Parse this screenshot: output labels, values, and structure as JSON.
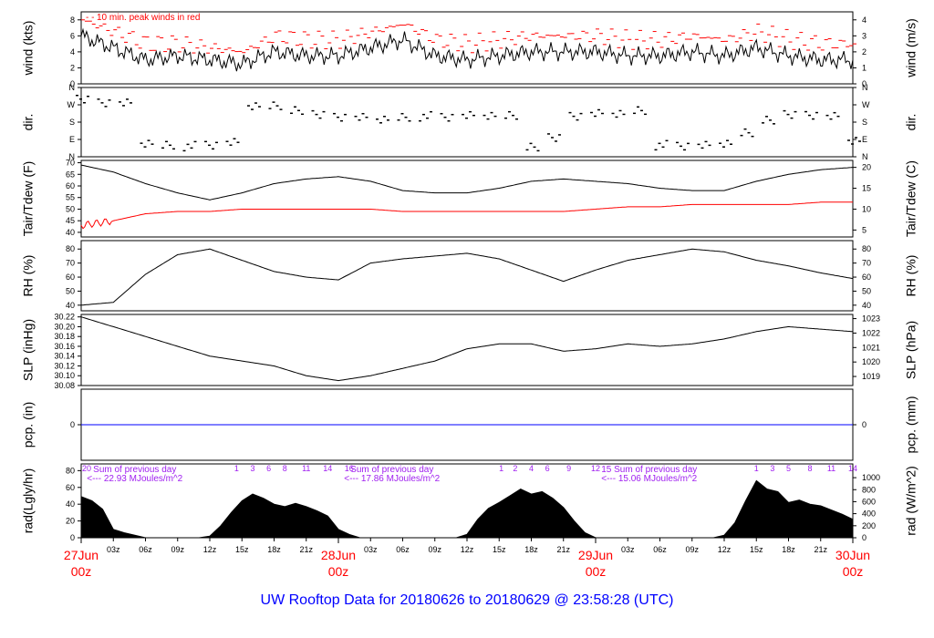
{
  "title": "UW Rooftop Data for 20180626  to  20180629 @ 23:58:28  (UTC)",
  "colors": {
    "black": "#000000",
    "red": "#ff0000",
    "blue": "#0000ff",
    "purple": "#a020f0"
  },
  "chart_data": [
    {
      "type": "line",
      "id": "wind",
      "ylabel_left": "wind (kts)",
      "ylabel_right": "wind (m/s)",
      "ylim": [
        0,
        9
      ],
      "ticks_left": [
        "0",
        "2",
        "4",
        "6",
        "8"
      ],
      "ticks_right": [
        "0",
        "1",
        "2",
        "3",
        "4"
      ],
      "annotation": "10 min. peak winds in red",
      "series": [
        {
          "color": "#000000",
          "x": [
            0,
            3,
            6,
            9,
            12,
            15,
            18,
            21,
            24,
            27,
            30,
            33,
            36,
            39,
            42,
            45,
            48,
            51,
            54,
            57,
            60,
            63,
            66,
            69,
            72
          ],
          "values": [
            6,
            4.5,
            3,
            3.5,
            3,
            2.5,
            4,
            3.5,
            3.5,
            4.5,
            5.5,
            3.5,
            3,
            3.5,
            4,
            4,
            4,
            3.5,
            3.5,
            4,
            3.5,
            4.5,
            3.5,
            3,
            3
          ]
        },
        {
          "color": "#ff0000",
          "x": [
            0,
            3,
            6,
            9,
            12,
            15,
            18,
            21,
            24,
            27,
            30,
            33,
            36,
            39,
            42,
            45,
            48,
            51,
            54,
            57,
            60,
            63,
            66,
            69,
            72
          ],
          "values": [
            8,
            6.5,
            5,
            5,
            4.5,
            4,
            6,
            5.5,
            5.5,
            6.5,
            7.5,
            5.5,
            5,
            5.5,
            6,
            6,
            6,
            5.5,
            5.5,
            6,
            5.5,
            6.5,
            5.5,
            5,
            5
          ]
        }
      ]
    },
    {
      "type": "scatter",
      "id": "dir",
      "ylabel_left": "dir.",
      "ylabel_right": "dir.",
      "ylim": [
        0,
        360
      ],
      "ticks_left": [
        "N",
        "E",
        "S",
        "W",
        "N"
      ],
      "ticks_right": [
        "N",
        "E",
        "S",
        "W",
        "N"
      ],
      "series": [
        {
          "color": "#000000",
          "x": [
            0,
            2,
            4,
            6,
            8,
            10,
            12,
            14,
            16,
            18,
            20,
            22,
            24,
            26,
            28,
            30,
            32,
            34,
            36,
            38,
            40,
            42,
            44,
            46,
            48,
            50,
            52,
            54,
            56,
            58,
            60,
            62,
            64,
            66,
            68,
            70,
            72
          ],
          "values": [
            295,
            285,
            280,
            75,
            60,
            55,
            60,
            70,
            265,
            260,
            245,
            215,
            210,
            205,
            200,
            205,
            210,
            205,
            210,
            215,
            210,
            55,
            95,
            215,
            225,
            230,
            240,
            60,
            55,
            55,
            70,
            120,
            195,
            215,
            220,
            210,
            90
          ]
        }
      ]
    },
    {
      "type": "line",
      "id": "temp",
      "ylabel_left": "Tair/Tdew (F)",
      "ylabel_right": "Tair/Tdew (C)",
      "ylim": [
        38,
        71
      ],
      "ticks_left": [
        "40",
        "45",
        "50",
        "55",
        "60",
        "65",
        "70"
      ],
      "ticks_right": [
        "5",
        "10",
        "15",
        "20"
      ],
      "series": [
        {
          "color": "#000000",
          "x": [
            0,
            3,
            6,
            9,
            12,
            15,
            18,
            21,
            24,
            27,
            30,
            33,
            36,
            39,
            42,
            45,
            48,
            51,
            54,
            57,
            60,
            63,
            66,
            69,
            72
          ],
          "values": [
            69,
            66,
            61,
            57,
            54,
            57,
            61,
            63,
            64,
            62,
            58,
            57,
            57,
            59,
            62,
            63,
            62,
            61,
            59,
            58,
            58,
            62,
            65,
            67,
            68
          ]
        },
        {
          "color": "#ff0000",
          "x": [
            0,
            3,
            6,
            9,
            12,
            15,
            18,
            21,
            24,
            27,
            30,
            33,
            36,
            39,
            42,
            45,
            48,
            51,
            54,
            57,
            60,
            63,
            66,
            69,
            72
          ],
          "values": [
            43,
            45,
            48,
            49,
            49,
            50,
            50,
            50,
            50,
            50,
            49,
            49,
            49,
            49,
            49,
            49,
            50,
            51,
            51,
            52,
            52,
            52,
            52,
            53,
            53
          ]
        }
      ]
    },
    {
      "type": "line",
      "id": "rh",
      "ylabel_left": "RH (%)",
      "ylabel_right": "RH (%)",
      "ylim": [
        36,
        86
      ],
      "ticks_left": [
        "40",
        "50",
        "60",
        "70",
        "80"
      ],
      "ticks_right": [
        "40",
        "50",
        "60",
        "70",
        "80"
      ],
      "series": [
        {
          "color": "#000000",
          "x": [
            0,
            3,
            6,
            9,
            12,
            15,
            18,
            21,
            24,
            27,
            30,
            33,
            36,
            39,
            42,
            45,
            48,
            51,
            54,
            57,
            60,
            63,
            66,
            69,
            72
          ],
          "values": [
            40,
            42,
            62,
            76,
            80,
            72,
            64,
            60,
            58,
            70,
            73,
            75,
            77,
            73,
            65,
            57,
            65,
            72,
            76,
            80,
            78,
            72,
            68,
            63,
            59
          ]
        }
      ]
    },
    {
      "type": "line",
      "id": "slp",
      "ylabel_left": "SLP (inHg)",
      "ylabel_right": "SLP (hPa)",
      "ylim": [
        30.08,
        30.225
      ],
      "ticks_left": [
        "30.08",
        "30.10",
        "30.12",
        "30.14",
        "30.16",
        "30.18",
        "30.20",
        "30.22"
      ],
      "ticks_right": [
        "1019",
        "1020",
        "1021",
        "1022",
        "1023"
      ],
      "series": [
        {
          "color": "#000000",
          "x": [
            0,
            3,
            6,
            9,
            12,
            15,
            18,
            21,
            24,
            27,
            30,
            33,
            36,
            39,
            42,
            45,
            48,
            51,
            54,
            57,
            60,
            63,
            66,
            69,
            72
          ],
          "values": [
            30.22,
            30.2,
            30.18,
            30.16,
            30.14,
            30.13,
            30.12,
            30.1,
            30.09,
            30.1,
            30.115,
            30.13,
            30.155,
            30.165,
            30.165,
            30.15,
            30.155,
            30.165,
            30.16,
            30.165,
            30.175,
            30.19,
            30.2,
            30.195,
            30.19
          ]
        }
      ]
    },
    {
      "type": "line",
      "id": "pcp",
      "ylabel_left": "pcp. (in)",
      "ylabel_right": "pcp. (mm)",
      "ticks_left": [
        "0"
      ],
      "ticks_right": [
        "0"
      ],
      "series": [
        {
          "color": "#0000ff",
          "x": [
            0,
            72
          ],
          "values": [
            0,
            0
          ]
        }
      ]
    },
    {
      "type": "area",
      "id": "rad",
      "ylabel_left": "rad(Lgly/hr)",
      "ylabel_right": "rad (W/m^2)",
      "ylim": [
        0,
        88
      ],
      "ticks_left": [
        "0",
        "20",
        "40",
        "60",
        "80"
      ],
      "ticks_right": [
        "0",
        "200",
        "400",
        "600",
        "800",
        "1000"
      ],
      "series": [
        {
          "color": "#000000",
          "x": [
            0,
            1,
            2,
            3,
            4,
            5,
            6,
            11,
            12,
            13,
            14,
            15,
            16,
            17,
            18,
            19,
            20,
            21,
            22,
            23,
            24,
            25,
            26,
            35,
            36,
            37,
            38,
            39,
            40,
            41,
            42,
            43,
            44,
            45,
            46,
            47,
            48,
            49,
            50,
            59,
            60,
            61,
            62,
            63,
            64,
            65,
            66,
            67,
            68,
            69,
            70,
            71,
            72
          ],
          "values": [
            49,
            44,
            34,
            10,
            6,
            3,
            0,
            0,
            2,
            14,
            30,
            44,
            52,
            47,
            40,
            37,
            41,
            37,
            32,
            26,
            10,
            4,
            0,
            0,
            4,
            22,
            35,
            42,
            50,
            58,
            52,
            55,
            47,
            36,
            20,
            6,
            0,
            0,
            0,
            0,
            3,
            18,
            44,
            68,
            58,
            55,
            42,
            45,
            40,
            38,
            33,
            28,
            22
          ]
        }
      ],
      "daily_sums": [
        "Sum of previous day\n<--- 22.93 MJoules/m^2",
        "Sum of previous day\n<--- 17.86 MJoules/m^2",
        "15  Sum of previous day\n<--- 15.06 MJoules/m^2"
      ],
      "hour_labels": [
        "20",
        "1",
        "3",
        "6",
        "8",
        "11",
        "14",
        "16",
        "1",
        "2",
        "4",
        "6",
        "9",
        "12",
        "1",
        "3",
        "5",
        "8",
        "11",
        "14"
      ]
    }
  ],
  "x_axis": {
    "ticks": [
      "03z",
      "06z",
      "09z",
      "12z",
      "15z",
      "18z",
      "21z",
      "03z",
      "06z",
      "09z",
      "12z",
      "15z",
      "18z",
      "21z",
      "03z",
      "06z",
      "09z",
      "12z",
      "15z",
      "18z",
      "21z"
    ],
    "day_labels": [
      {
        "day": "27Jun",
        "hour": "00z"
      },
      {
        "day": "28Jun",
        "hour": "00z"
      },
      {
        "day": "29Jun",
        "hour": "00z"
      },
      {
        "day": "30Jun",
        "hour": "00z"
      }
    ]
  }
}
